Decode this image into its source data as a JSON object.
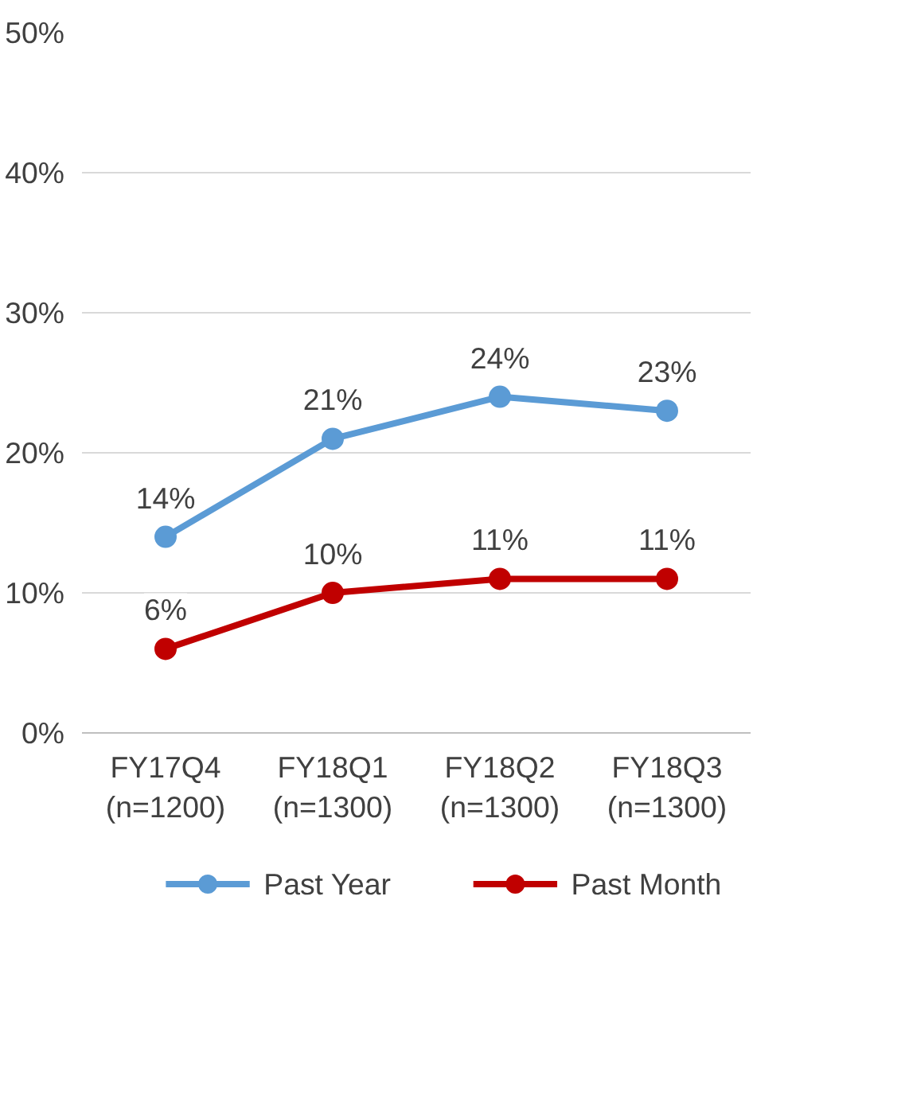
{
  "chart_data": {
    "type": "line",
    "categories": [
      "FY17Q4\n(n=1200)",
      "FY18Q1\n(n=1300)",
      "FY18Q2\n(n=1300)",
      "FY18Q3\n(n=1300)"
    ],
    "series": [
      {
        "name": "Past Year",
        "color": "#5b9bd5",
        "values": [
          14,
          21,
          24,
          23
        ],
        "value_labels": [
          "14%",
          "21%",
          "24%",
          "23%"
        ]
      },
      {
        "name": "Past Month",
        "color": "#c00000",
        "values": [
          6,
          10,
          11,
          11
        ],
        "value_labels": [
          "6%",
          "10%",
          "11%",
          "11%"
        ]
      }
    ],
    "ylim": [
      0,
      50
    ],
    "yticks": [
      {
        "value": 0,
        "label": "0%"
      },
      {
        "value": 10,
        "label": "10%"
      },
      {
        "value": 20,
        "label": "20%"
      },
      {
        "value": 30,
        "label": "30%"
      },
      {
        "value": 40,
        "label": "40%"
      },
      {
        "value": 50,
        "label": "50%"
      }
    ],
    "marker": "circle",
    "line_style": "solid",
    "grid": "y",
    "legend": "bottom"
  }
}
